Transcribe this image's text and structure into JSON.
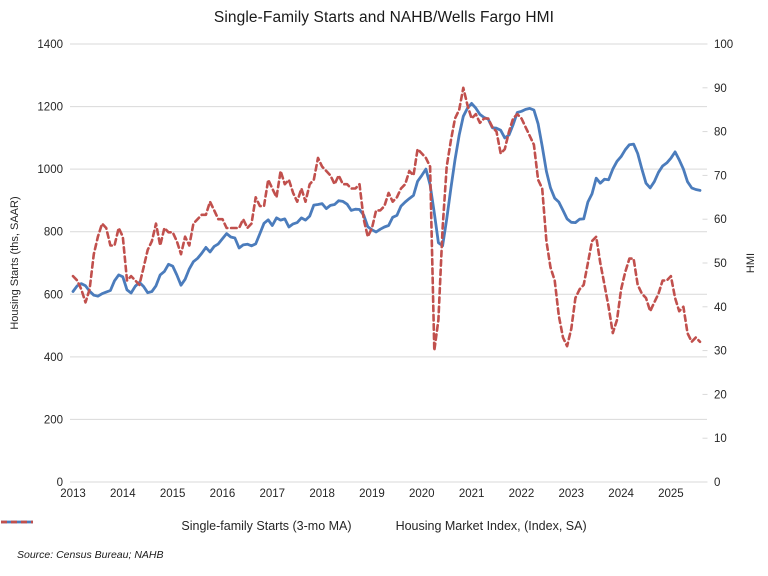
{
  "title": "Single-Family Starts and NAHB/Wells Fargo HMI",
  "source_note": "Source: Census Bureau; NAHB",
  "legend": [
    {
      "label": "Single-family Starts (3-mo MA)",
      "color": "#4B7CBC",
      "style": "solid"
    },
    {
      "label": "Housing Market Index, (Index, SA)",
      "color": "#C1504D",
      "style": "dashed"
    }
  ],
  "left_axis": {
    "title": "Housing Starts (ths, SAAR)",
    "tick_labels": [
      "0",
      "200",
      "400",
      "600",
      "800",
      "1000",
      "1200",
      "1400"
    ]
  },
  "right_axis": {
    "title": "HMI",
    "tick_labels": [
      "0",
      "10",
      "20",
      "30",
      "40",
      "50",
      "60",
      "70",
      "80",
      "90",
      "100"
    ]
  },
  "x_axis": {
    "tick_labels": [
      "2013",
      "2014",
      "2015",
      "2016",
      "2017",
      "2018",
      "2019",
      "2020",
      "2021",
      "2022",
      "2023",
      "2024",
      "2025"
    ]
  },
  "colors": {
    "starts_line": "#4B7CBC",
    "hmi_line": "#C1504D",
    "grid": "#D9D9D9",
    "label_text": "#262626",
    "background": "#FFFFFF"
  },
  "chart_data": {
    "type": "line",
    "frequency": "monthly",
    "x_start": "2013-01",
    "x_end": "2025-08",
    "title": "Single-Family Starts and NAHB/Wells Fargo HMI",
    "left_ylabel": "Housing Starts (ths, SAAR)",
    "right_ylabel": "HMI",
    "left_ylim": [
      0,
      1400
    ],
    "right_ylim": [
      0,
      100
    ],
    "grid": "horizontal",
    "legend_position": "bottom",
    "x_tick_years": [
      2013,
      2014,
      2015,
      2016,
      2017,
      2018,
      2019,
      2020,
      2021,
      2022,
      2023,
      2024,
      2025
    ],
    "series": [
      {
        "name": "Single-family Starts (3-mo MA)",
        "axis": "left",
        "color": "#4B7CBC",
        "line_style": "solid",
        "values": [
          609,
          627,
          634,
          627,
          610,
          597,
          594,
          602,
          607,
          612,
          643,
          662,
          656,
          614,
          604,
          626,
          638,
          625,
          605,
          609,
          627,
          662,
          673,
          696,
          690,
          662,
          629,
          648,
          681,
          704,
          715,
          731,
          750,
          735,
          753,
          761,
          778,
          794,
          783,
          780,
          748,
          758,
          760,
          755,
          761,
          794,
          827,
          838,
          820,
          844,
          837,
          841,
          815,
          825,
          829,
          844,
          837,
          850,
          885,
          887,
          890,
          874,
          884,
          887,
          899,
          897,
          888,
          868,
          872,
          871,
          853,
          816,
          806,
          799,
          808,
          815,
          820,
          846,
          852,
          882,
          895,
          906,
          916,
          961,
          980,
          1000,
          950,
          860,
          765,
          755,
          840,
          939,
          1030,
          1109,
          1169,
          1195,
          1210,
          1195,
          1175,
          1165,
          1160,
          1132,
          1131,
          1124,
          1100,
          1109,
          1142,
          1181,
          1185,
          1191,
          1194,
          1189,
          1145,
          1073,
          993,
          940,
          907,
          895,
          868,
          841,
          830,
          829,
          840,
          841,
          895,
          921,
          971,
          955,
          968,
          966,
          1000,
          1025,
          1040,
          1062,
          1078,
          1080,
          1050,
          1000,
          955,
          940,
          960,
          990,
          1010,
          1020,
          1035,
          1055,
          1030,
          1000,
          960,
          940,
          935,
          932
        ]
      },
      {
        "name": "Housing Market Index, (Index, SA)",
        "axis": "right",
        "color": "#C1504D",
        "line_style": "dashed",
        "values": [
          47,
          46,
          44,
          41,
          44,
          52,
          56,
          59,
          58,
          54,
          54,
          58,
          56,
          46,
          47,
          46,
          45,
          49,
          53,
          55,
          59,
          54,
          58,
          57,
          57,
          55,
          52,
          56,
          54,
          59,
          60,
          61,
          61,
          64,
          62,
          60,
          60,
          58,
          58,
          58,
          58,
          60,
          58,
          59,
          65,
          63,
          63,
          69,
          67,
          65,
          71,
          68,
          69,
          66,
          64,
          67,
          64,
          68,
          69,
          74,
          72,
          71,
          70,
          68,
          70,
          68,
          68,
          67,
          67,
          68,
          60,
          56,
          58,
          62,
          62,
          63,
          66,
          64,
          65,
          67,
          68,
          71,
          70,
          76,
          75,
          74,
          72,
          30,
          37,
          58,
          72,
          78,
          83,
          85,
          90,
          86,
          83,
          84,
          82,
          83,
          83,
          81,
          80,
          75,
          76,
          80,
          83,
          84,
          83,
          81,
          79,
          77,
          69,
          67,
          55,
          49,
          46,
          38,
          33,
          31,
          35,
          42,
          44,
          45,
          50,
          55,
          56,
          50,
          45,
          40,
          34,
          37,
          44,
          48,
          51,
          51,
          45,
          43,
          42,
          39,
          41,
          43,
          46,
          46,
          47,
          42,
          39,
          40,
          34,
          32,
          33,
          32
        ]
      }
    ]
  }
}
